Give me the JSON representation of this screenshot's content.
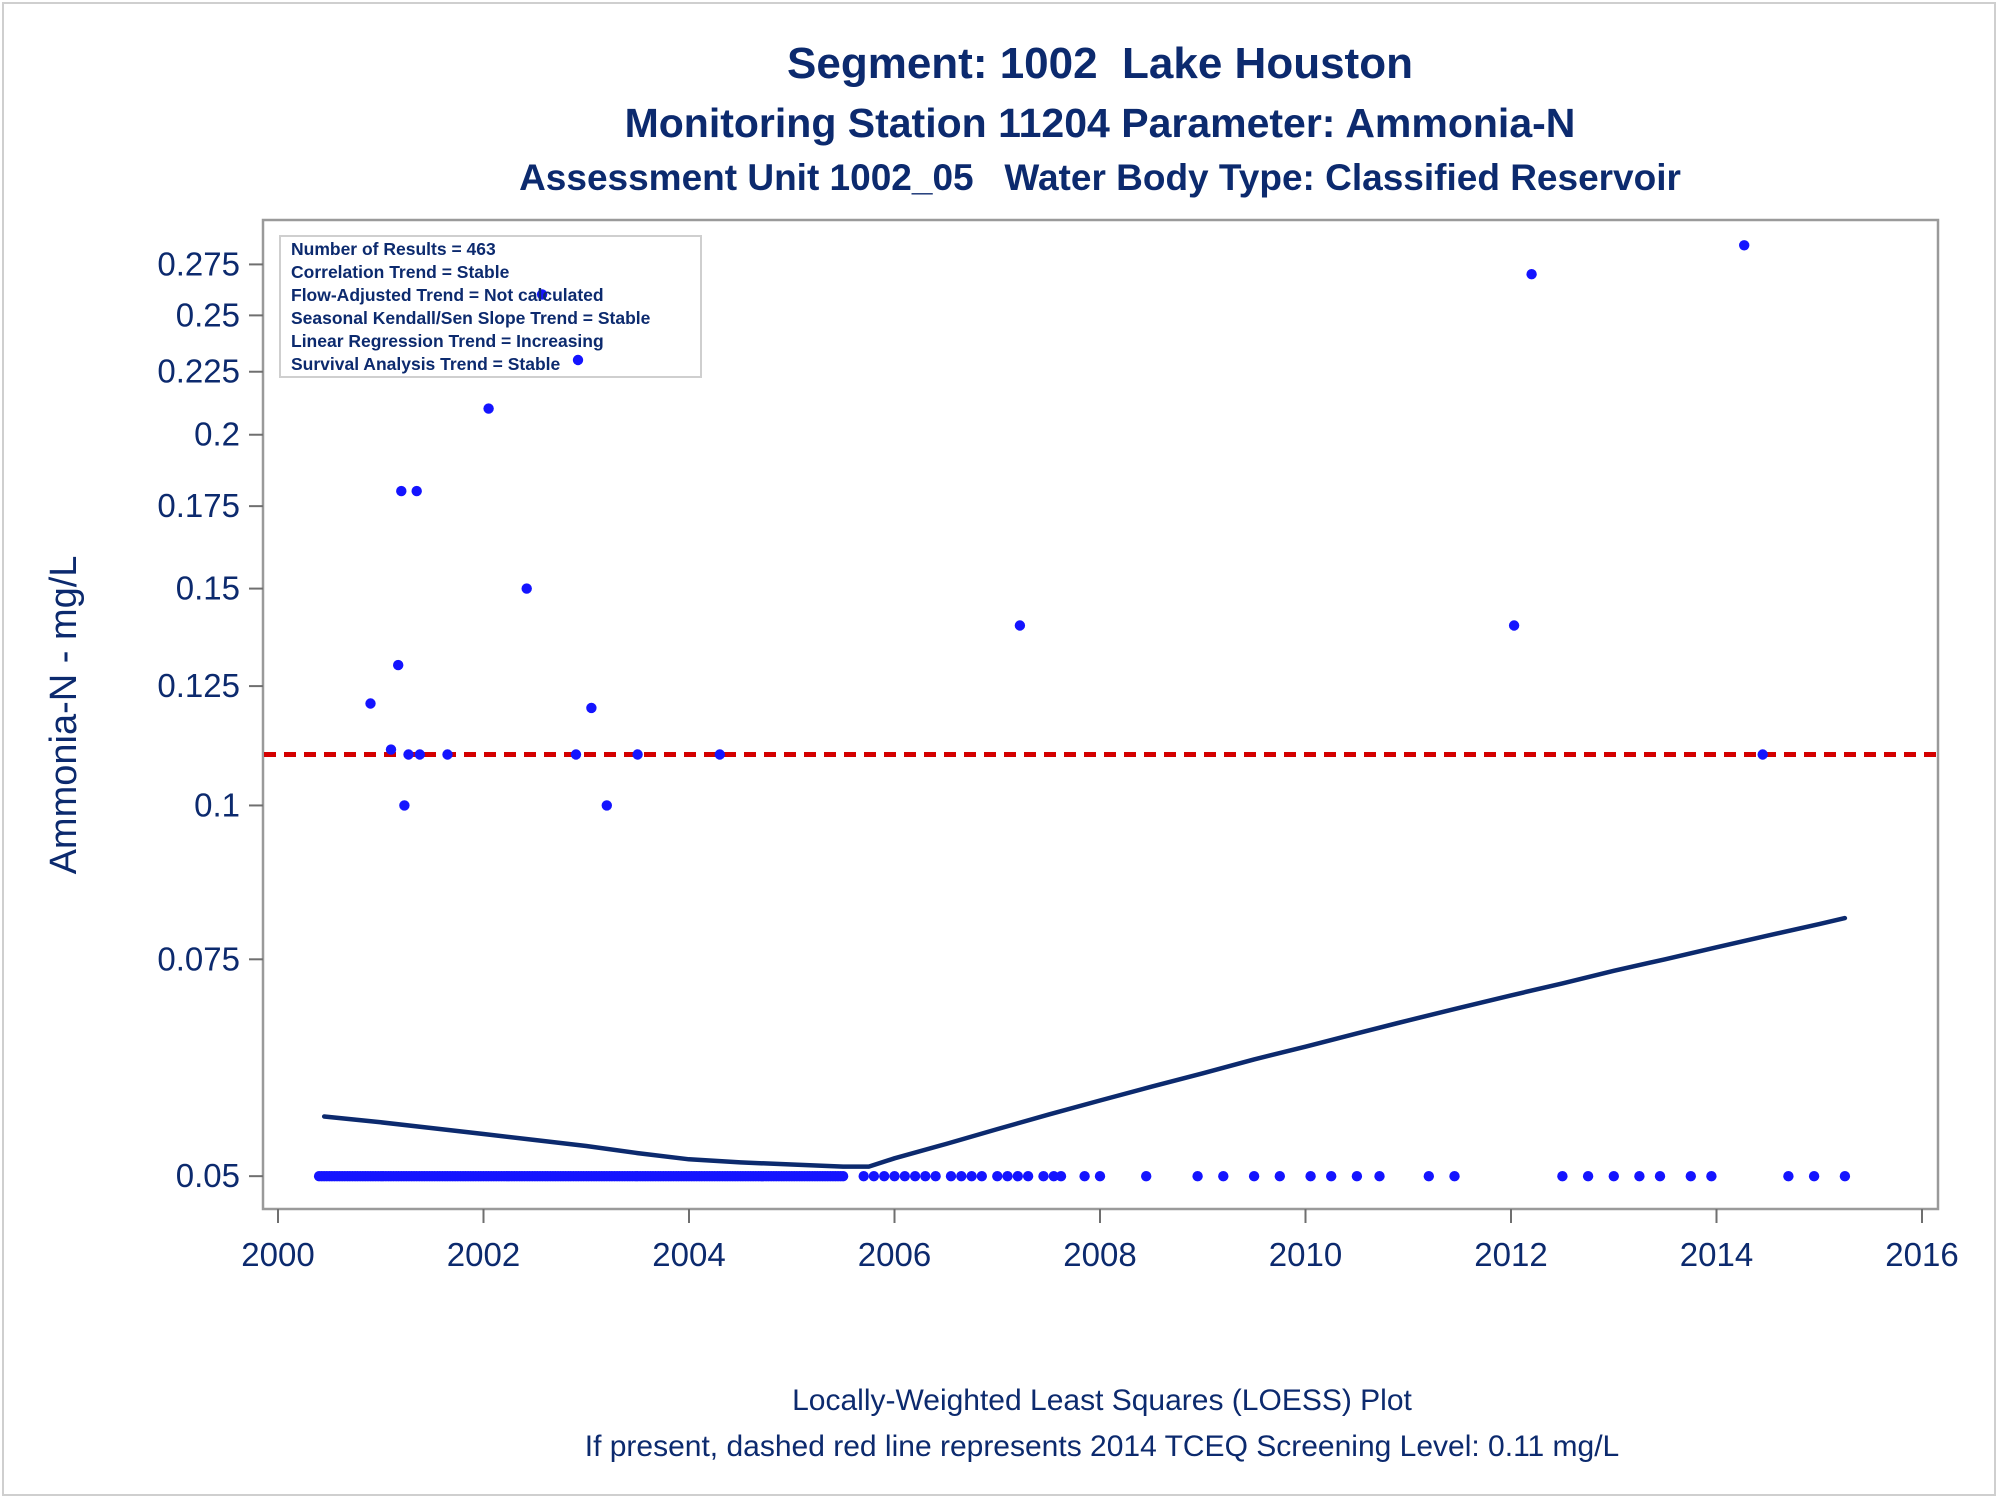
{
  "chart_data": {
    "type": "scatter",
    "title": "Segment: 1002  Lake Houston",
    "subtitle": "Monitoring Station 11204 Parameter: Ammonia-N",
    "subtitle2": "Assessment Unit 1002_05   Water Body Type: Classified Reservoir",
    "ylabel": "Ammonia-N - mg/L",
    "xlabel": "",
    "xlim": [
      2000,
      2016
    ],
    "ylim": [
      0.048,
      0.29
    ],
    "y_scale": "log",
    "x_ticks": [
      2000,
      2002,
      2004,
      2006,
      2008,
      2010,
      2012,
      2014,
      2016
    ],
    "y_ticks": [
      0.05,
      0.075,
      0.1,
      0.125,
      0.15,
      0.175,
      0.2,
      0.225,
      0.25,
      0.275
    ],
    "y_tick_labels": [
      "0.05",
      "0.075",
      "0.1",
      "0.125",
      "0.15",
      "0.175",
      "0.2",
      "0.225",
      "0.25",
      "0.275"
    ],
    "grid": false,
    "stats_box": {
      "position": "top-left",
      "lines": [
        "Number of Results = 463",
        "Correlation Trend = Stable",
        "Flow-Adjusted Trend = Not calculated",
        "Seasonal Kendall/Sen Slope Trend = Stable",
        "Linear Regression Trend = Increasing",
        "Survival Analysis Trend = Stable"
      ]
    },
    "reference_line": {
      "y": 0.11,
      "style": "dashed",
      "color": "#d40000"
    },
    "point_color": "#1414ff",
    "loess_color": "#0c2a6e",
    "scatter": [
      {
        "x": 2000.9,
        "y": 0.121
      },
      {
        "x": 2001.1,
        "y": 0.111
      },
      {
        "x": 2001.17,
        "y": 0.13
      },
      {
        "x": 2001.2,
        "y": 0.18
      },
      {
        "x": 2001.23,
        "y": 0.1
      },
      {
        "x": 2001.27,
        "y": 0.11
      },
      {
        "x": 2001.35,
        "y": 0.18
      },
      {
        "x": 2001.38,
        "y": 0.11
      },
      {
        "x": 2001.65,
        "y": 0.11
      },
      {
        "x": 2002.05,
        "y": 0.21
      },
      {
        "x": 2002.42,
        "y": 0.15
      },
      {
        "x": 2002.57,
        "y": 0.26
      },
      {
        "x": 2002.9,
        "y": 0.11
      },
      {
        "x": 2002.92,
        "y": 0.23
      },
      {
        "x": 2003.05,
        "y": 0.12
      },
      {
        "x": 2003.2,
        "y": 0.1
      },
      {
        "x": 2003.5,
        "y": 0.11
      },
      {
        "x": 2004.3,
        "y": 0.11
      },
      {
        "x": 2007.22,
        "y": 0.14
      },
      {
        "x": 2012.03,
        "y": 0.14
      },
      {
        "x": 2012.2,
        "y": 0.27
      },
      {
        "x": 2014.27,
        "y": 0.285
      },
      {
        "x": 2014.45,
        "y": 0.11
      }
    ],
    "baseline_points": {
      "y": 0.05,
      "dense_x_range": [
        2000.4,
        2005.5
      ],
      "dense_step": 0.025,
      "x": [
        2005.7,
        2005.8,
        2005.9,
        2006.0,
        2006.1,
        2006.2,
        2006.3,
        2006.4,
        2006.55,
        2006.65,
        2006.75,
        2006.85,
        2007.0,
        2007.1,
        2007.2,
        2007.3,
        2007.45,
        2007.55,
        2007.62,
        2007.85,
        2008.0,
        2008.45,
        2008.95,
        2009.2,
        2009.5,
        2009.75,
        2010.05,
        2010.25,
        2010.5,
        2010.72,
        2011.2,
        2011.45,
        2012.5,
        2012.75,
        2013.0,
        2013.25,
        2013.45,
        2013.75,
        2013.95,
        2014.7,
        2014.95,
        2015.25
      ]
    },
    "loess_line": [
      {
        "x": 2000.45,
        "y": 0.0559
      },
      {
        "x": 2001.0,
        "y": 0.0553
      },
      {
        "x": 2001.5,
        "y": 0.0547
      },
      {
        "x": 2002.0,
        "y": 0.0541
      },
      {
        "x": 2002.5,
        "y": 0.0535
      },
      {
        "x": 2003.0,
        "y": 0.0529
      },
      {
        "x": 2003.5,
        "y": 0.0522
      },
      {
        "x": 2004.0,
        "y": 0.0516
      },
      {
        "x": 2004.5,
        "y": 0.0513
      },
      {
        "x": 2005.0,
        "y": 0.0511
      },
      {
        "x": 2005.5,
        "y": 0.0509
      },
      {
        "x": 2005.75,
        "y": 0.0509
      },
      {
        "x": 2006.0,
        "y": 0.0517
      },
      {
        "x": 2006.5,
        "y": 0.0531
      },
      {
        "x": 2007.0,
        "y": 0.0546
      },
      {
        "x": 2007.5,
        "y": 0.0561
      },
      {
        "x": 2008.0,
        "y": 0.0576
      },
      {
        "x": 2008.5,
        "y": 0.0591
      },
      {
        "x": 2009.0,
        "y": 0.0606
      },
      {
        "x": 2009.5,
        "y": 0.0622
      },
      {
        "x": 2010.0,
        "y": 0.0637
      },
      {
        "x": 2010.5,
        "y": 0.0653
      },
      {
        "x": 2011.0,
        "y": 0.0669
      },
      {
        "x": 2011.5,
        "y": 0.0685
      },
      {
        "x": 2012.0,
        "y": 0.0701
      },
      {
        "x": 2012.5,
        "y": 0.0717
      },
      {
        "x": 2013.0,
        "y": 0.0734
      },
      {
        "x": 2013.5,
        "y": 0.075
      },
      {
        "x": 2014.0,
        "y": 0.0767
      },
      {
        "x": 2014.5,
        "y": 0.0784
      },
      {
        "x": 2015.0,
        "y": 0.0801
      },
      {
        "x": 2015.25,
        "y": 0.081
      }
    ],
    "footnotes": [
      "Locally-Weighted Least Squares (LOESS) Plot",
      "If present, dashed red line represents 2014 TCEQ Screening Level: 0.11 mg/L"
    ]
  }
}
